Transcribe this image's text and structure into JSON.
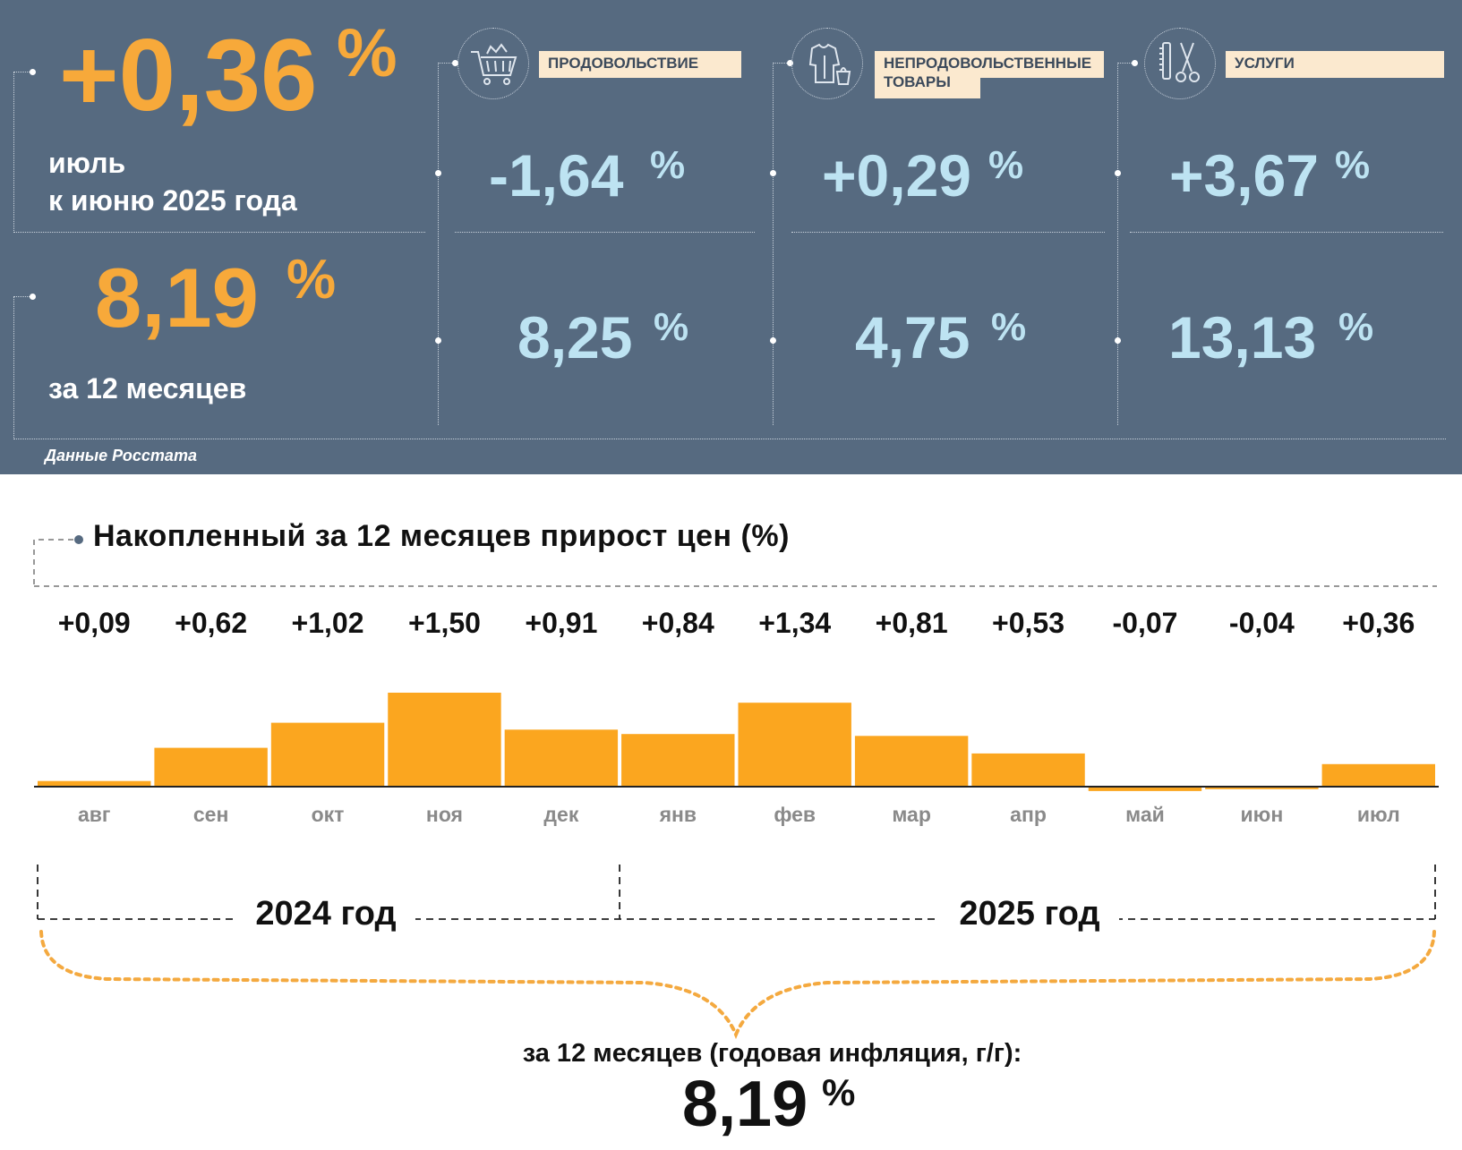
{
  "monthly": {
    "value": "+0,36",
    "pct": "%",
    "label_line1": "июль",
    "label_line2": "к июню 2025 года"
  },
  "annual": {
    "value": "8,19",
    "pct": "%",
    "label": "за 12 месяцев"
  },
  "categories": [
    {
      "id": "food",
      "icon": "shopping-cart-icon",
      "label_lines": [
        "ПРОДОВОЛЬСТВИЕ"
      ],
      "monthly": "-1,64",
      "annual": "8,25",
      "pct": "%"
    },
    {
      "id": "nonfood",
      "icon": "clothing-icon",
      "label_lines": [
        "НЕПРОДОВОЛЬСТВЕННЫЕ",
        "ТОВАРЫ"
      ],
      "monthly": "+0,29",
      "annual": "4,75",
      "pct": "%"
    },
    {
      "id": "services",
      "icon": "scissors-comb-icon",
      "label_lines": [
        "УСЛУГИ"
      ],
      "monthly": "+3,67",
      "annual": "13,13",
      "pct": "%"
    }
  ],
  "source": "Данные Росстата",
  "chart_data": {
    "type": "bar",
    "title": "Накопленный за 12 месяцев прирост цен (%)",
    "categories": [
      "авг",
      "сен",
      "окт",
      "ноя",
      "дек",
      "янв",
      "фев",
      "мар",
      "апр",
      "май",
      "июн",
      "июл"
    ],
    "values": [
      0.09,
      0.62,
      1.02,
      1.5,
      0.91,
      0.84,
      1.34,
      0.81,
      0.53,
      -0.07,
      -0.04,
      0.36
    ],
    "value_labels": [
      "+0,09",
      "+0,62",
      "+1,02",
      "+1,50",
      "+0,91",
      "+0,84",
      "+1,34",
      "+0,81",
      "+0,53",
      "-0,07",
      "-0,04",
      "+0,36"
    ],
    "bar_color": "#fba61f",
    "year_groups": [
      {
        "label": "2024 год",
        "first_index": 0,
        "last_index": 4
      },
      {
        "label": "2025 год",
        "first_index": 5,
        "last_index": 11
      }
    ],
    "total_label": "за 12 месяцев (годовая инфляция, г/г):",
    "total_value": "8,19",
    "total_pct": "%"
  },
  "colors": {
    "panel": "#566a80",
    "accent_orange": "#f7a93a",
    "value_blue": "#bde3f2",
    "label_bg": "#fbe9cf"
  }
}
